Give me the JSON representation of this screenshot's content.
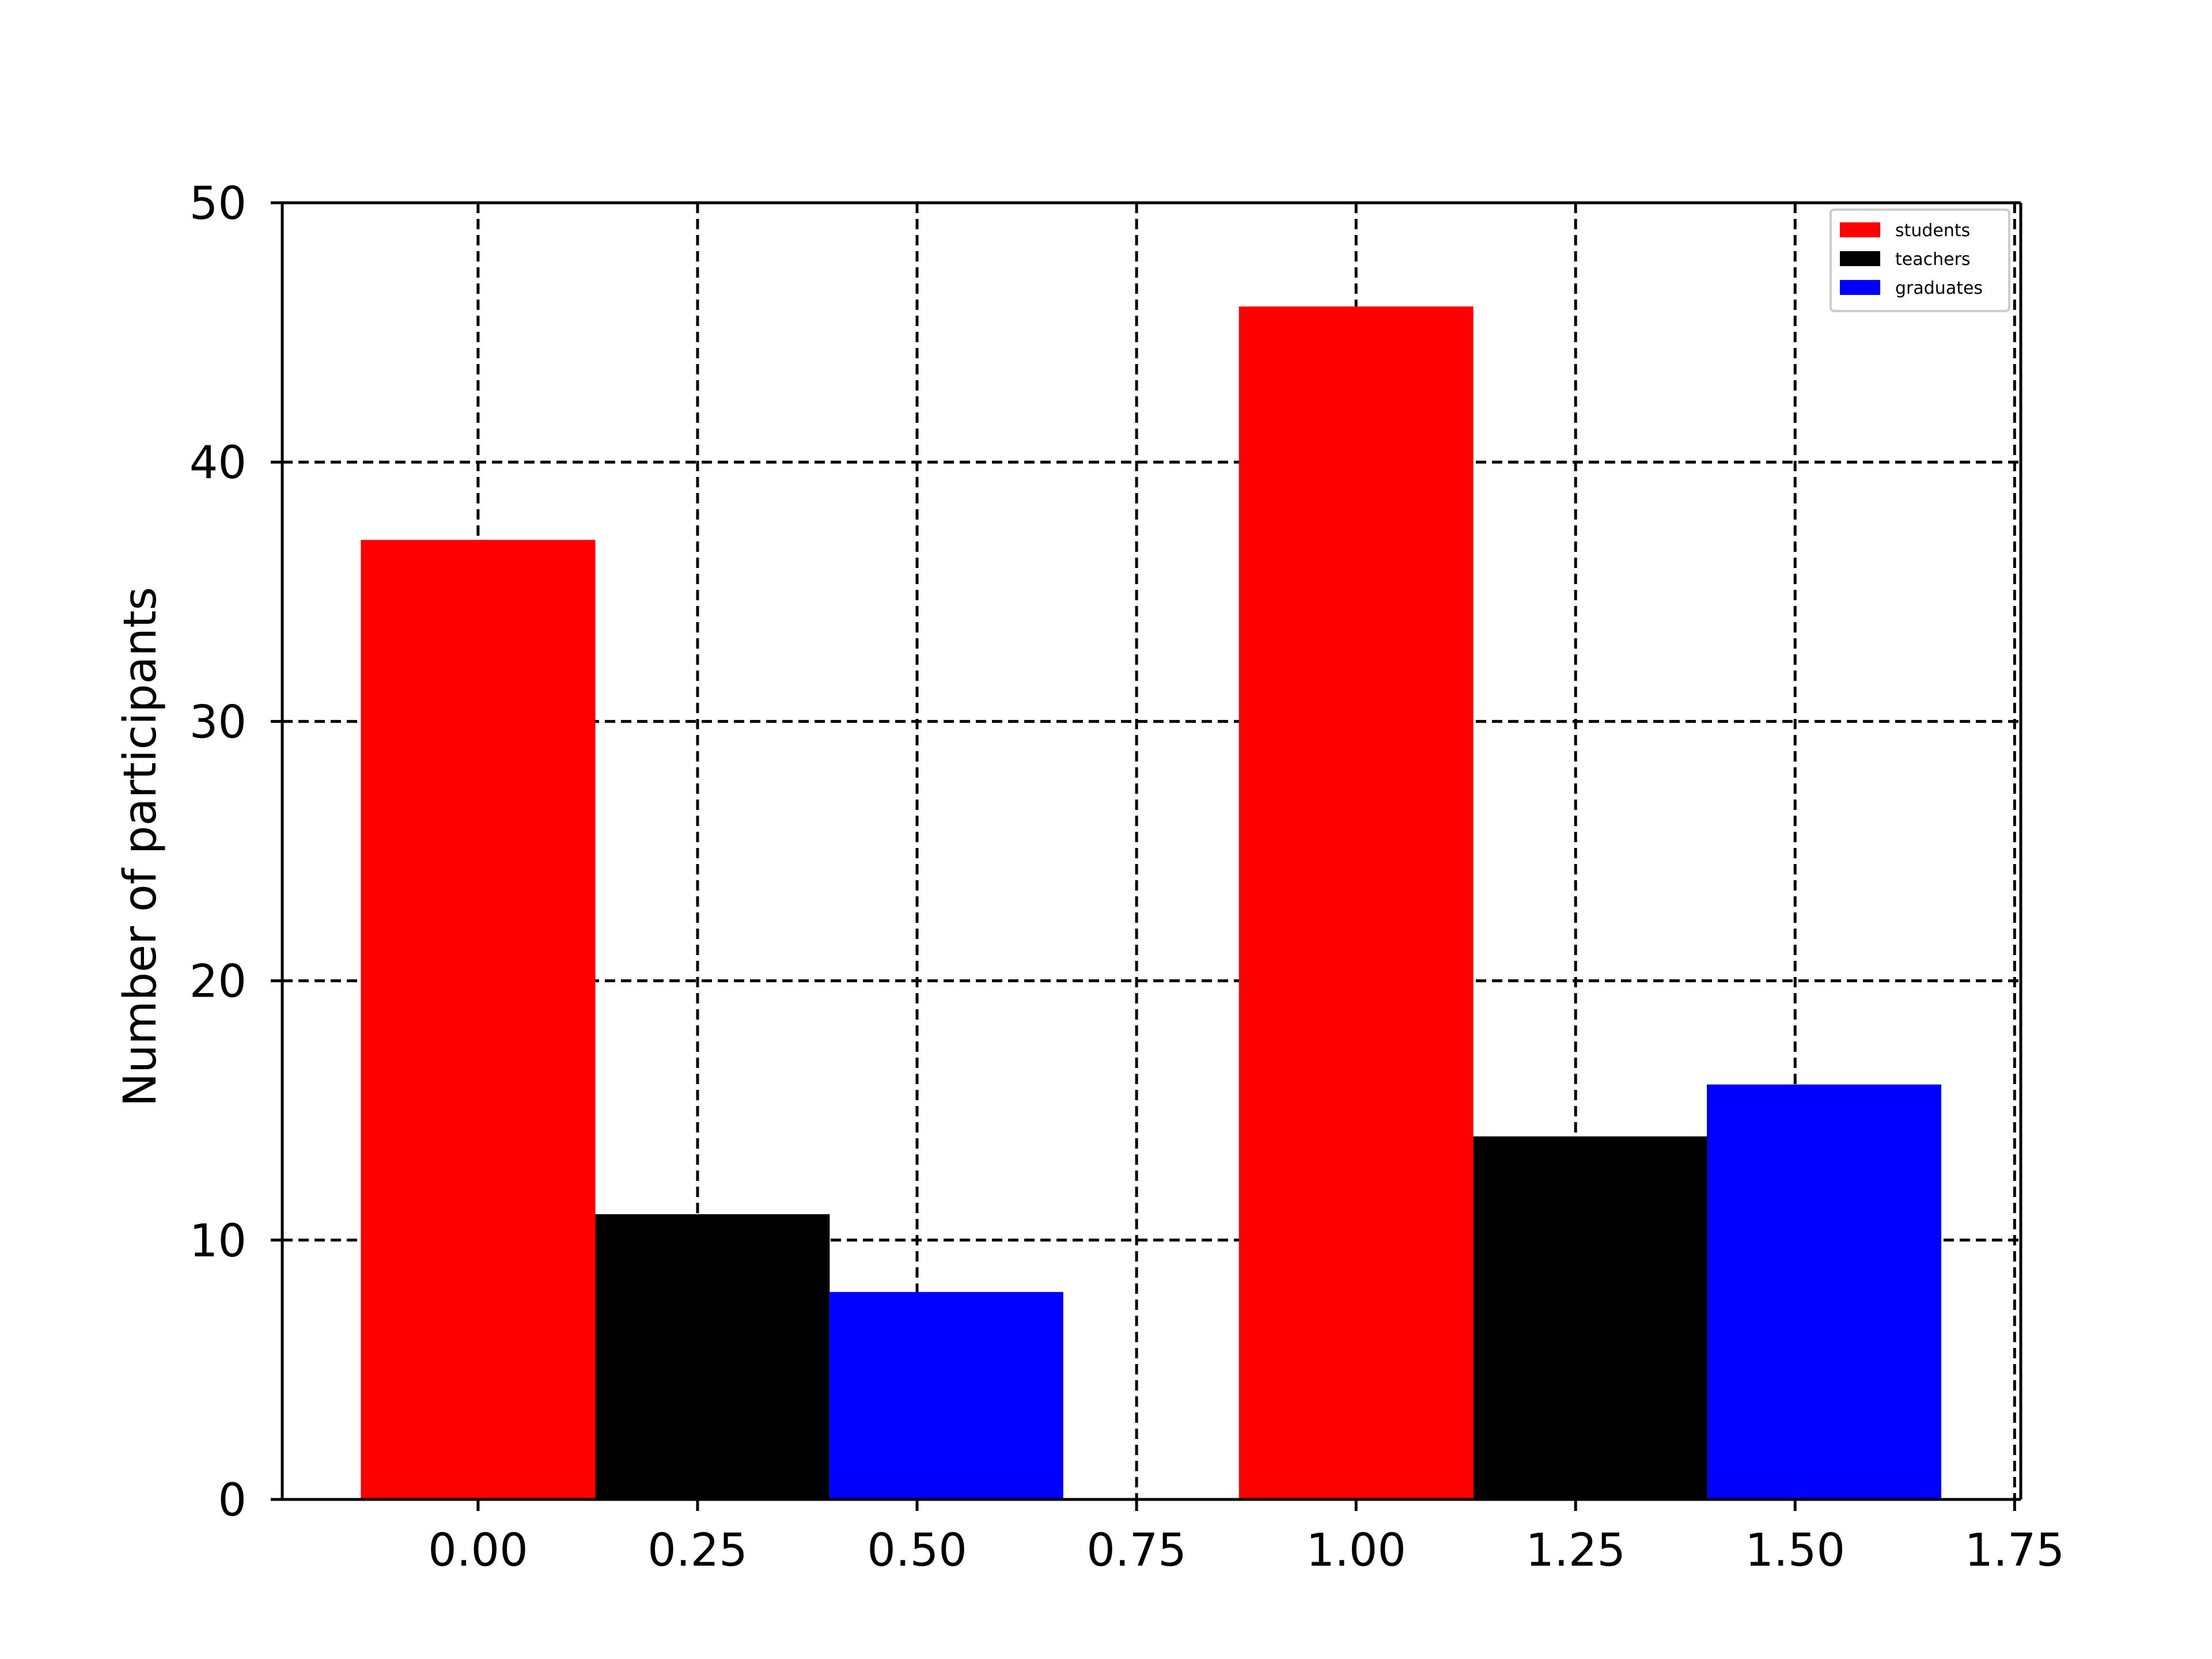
{
  "chart_data": {
    "type": "bar",
    "title": "",
    "xlabel": "",
    "ylabel": "Number of participants",
    "bar_width": 0.267,
    "xlim": [
      -0.223,
      1.757
    ],
    "ylim": [
      0,
      50
    ],
    "xticks": [
      0.0,
      0.25,
      0.5,
      0.75,
      1.0,
      1.25,
      1.5,
      1.75
    ],
    "xtick_labels": [
      "0.00",
      "0.25",
      "0.50",
      "0.75",
      "1.00",
      "1.25",
      "1.50",
      "1.75"
    ],
    "yticks": [
      0,
      10,
      20,
      30,
      40,
      50
    ],
    "ytick_labels": [
      "0",
      "10",
      "20",
      "30",
      "40",
      "50"
    ],
    "grid": true,
    "grid_style": "dashed",
    "legend_position": "top-right",
    "series": [
      {
        "name": "students",
        "color": "#ff0000",
        "x": [
          0.0,
          1.0
        ],
        "values": [
          37,
          46
        ]
      },
      {
        "name": "teachers",
        "color": "#000000",
        "x": [
          0.267,
          1.267
        ],
        "values": [
          11,
          14
        ]
      },
      {
        "name": "graduates",
        "color": "#0000ff",
        "x": [
          0.533,
          1.533
        ],
        "values": [
          8,
          16
        ]
      }
    ]
  }
}
